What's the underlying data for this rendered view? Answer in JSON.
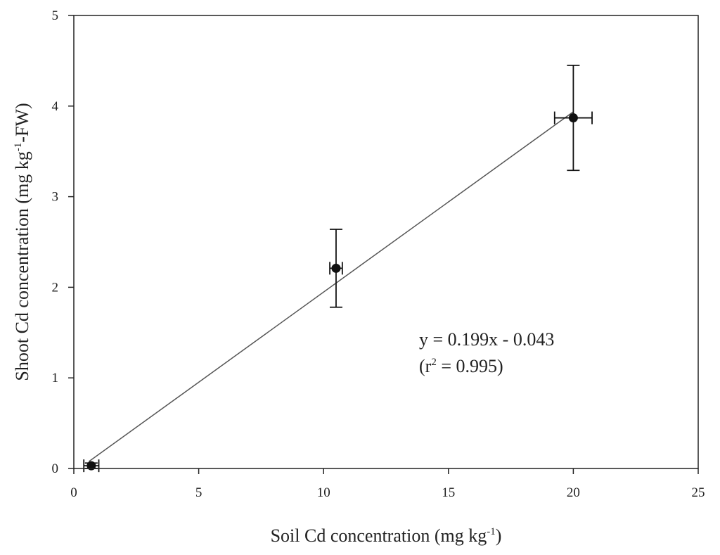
{
  "chart_data": {
    "type": "scatter",
    "title": "",
    "xlabel": {
      "main": "Soil Cd concentration (mg kg",
      "sup": "-1",
      "end": ")"
    },
    "ylabel": {
      "main": "Shoot Cd concentration (mg kg",
      "sup": "-1",
      "end": "-FW)"
    },
    "xlim": [
      0,
      25
    ],
    "ylim": [
      0,
      5
    ],
    "xticks": [
      0,
      5,
      10,
      15,
      20,
      25
    ],
    "yticks": [
      0,
      1,
      2,
      3,
      4,
      5
    ],
    "grid": false,
    "points": [
      {
        "x": 0.7,
        "y": 0.03,
        "xerr": 0.3,
        "yerr": 0.03
      },
      {
        "x": 10.5,
        "y": 2.21,
        "xerr": 0.25,
        "yerr": 0.43
      },
      {
        "x": 20.0,
        "y": 3.87,
        "xerr": 0.75,
        "yerr": 0.58
      }
    ],
    "fit_line": {
      "slope": 0.199,
      "intercept": -0.043,
      "x_range": [
        0.6,
        20.0
      ]
    },
    "annotation": {
      "line1": "y = 0.199x - 0.043",
      "line2_pre": "(r",
      "line2_sup": "2",
      "line2_post": " = 0.995)"
    }
  }
}
